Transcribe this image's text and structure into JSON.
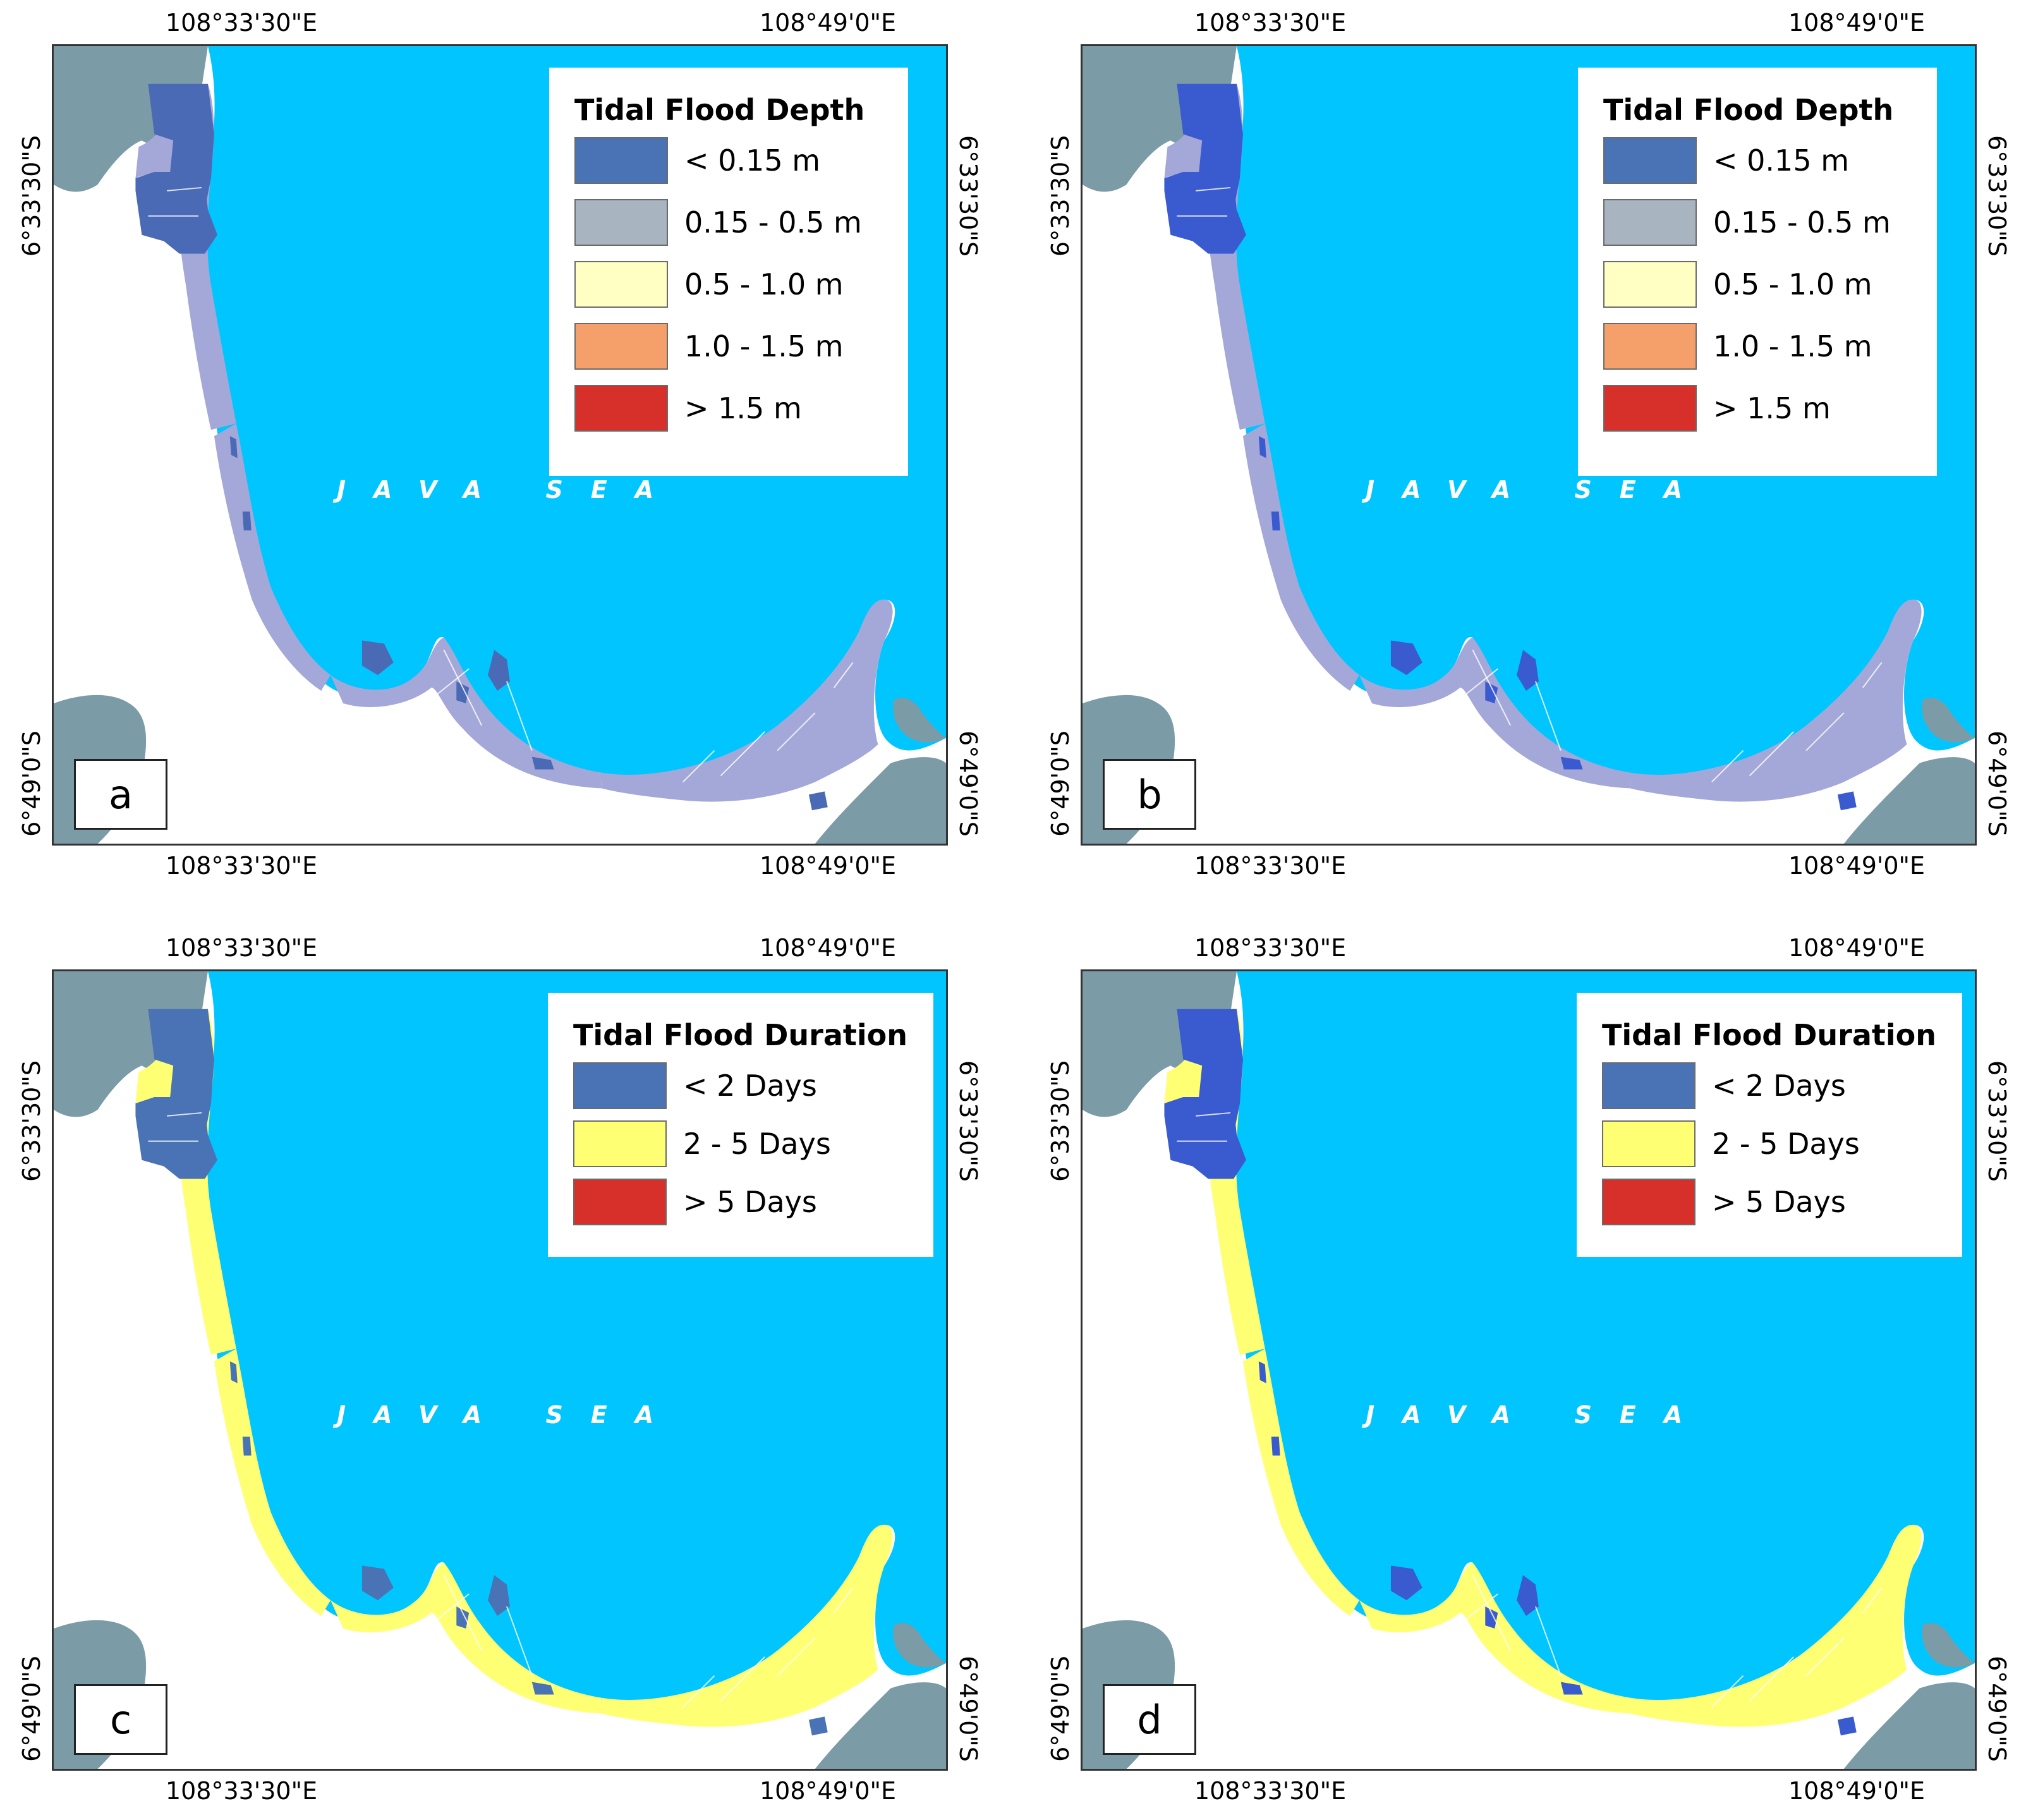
{
  "coordinates": {
    "lon_west": "108°33'30\"E",
    "lon_east": "108°49'0\"E",
    "lat_north": "6°33'30\"S",
    "lat_south": "6°49'0\"S"
  },
  "sea_label": "JAVA SEA",
  "colors": {
    "sea": "#00c5ff",
    "land_grey": "#7b9ba6",
    "inland_white": "#ffffff",
    "depth_lt_015": "#4a73b5",
    "depth_015_05": "#a8b4bf",
    "depth_05_10": "#ffffc4",
    "depth_10_15": "#f5a06b",
    "depth_gt_15": "#d7302a",
    "flood_shallow_fill": "#a4a8d8",
    "flood_deep_fill_a": "#4a6ab5",
    "flood_deep_fill_b": "#3a5bd0",
    "duration_lt_2": "#4a73b5",
    "duration_2_5": "#ffff73",
    "duration_gt_5": "#d7302a"
  },
  "panels": [
    {
      "letter": "a",
      "legend": {
        "title": "Tidal Flood Depth",
        "items": [
          {
            "label": "< 0.15 m",
            "color": "#4a73b5"
          },
          {
            "label": "0.15 - 0.5 m",
            "color": "#a8b4bf"
          },
          {
            "label": "0.5 - 1.0 m",
            "color": "#ffffc4"
          },
          {
            "label": "1.0 - 1.5 m",
            "color": "#f5a06b"
          },
          {
            "label": "> 1.5 m",
            "color": "#d7302a"
          }
        ]
      }
    },
    {
      "letter": "b",
      "legend": {
        "title": "Tidal Flood Depth",
        "items": [
          {
            "label": "< 0.15 m",
            "color": "#4a73b5"
          },
          {
            "label": "0.15 - 0.5 m",
            "color": "#a8b4bf"
          },
          {
            "label": "0.5 - 1.0 m",
            "color": "#ffffc4"
          },
          {
            "label": "1.0 - 1.5 m",
            "color": "#f5a06b"
          },
          {
            "label": "> 1.5 m",
            "color": "#d7302a"
          }
        ]
      }
    },
    {
      "letter": "c",
      "legend": {
        "title": "Tidal Flood Duration",
        "items": [
          {
            "label": "< 2 Days",
            "color": "#4a73b5"
          },
          {
            "label": "2 - 5 Days",
            "color": "#ffff73"
          },
          {
            "label": "> 5 Days",
            "color": "#d7302a"
          }
        ]
      }
    },
    {
      "letter": "d",
      "legend": {
        "title": "Tidal Flood Duration",
        "items": [
          {
            "label": "< 2 Days",
            "color": "#4a73b5"
          },
          {
            "label": "2 - 5 Days",
            "color": "#ffff73"
          },
          {
            "label": "> 5 Days",
            "color": "#d7302a"
          }
        ]
      }
    }
  ]
}
